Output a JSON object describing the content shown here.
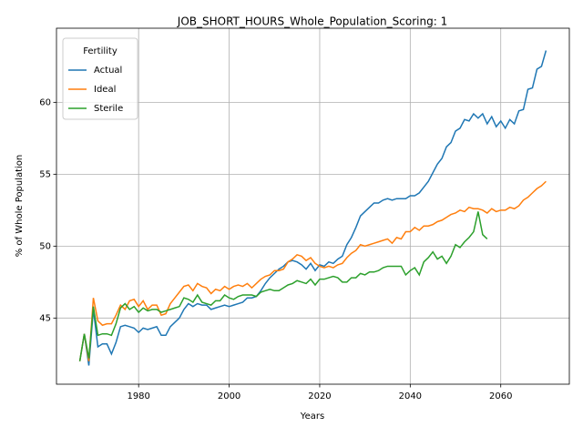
{
  "chart_data": {
    "type": "line",
    "title": "JOB_SHORT_HOURS_Whole_Population_Scoring: 1",
    "x_label": "Years",
    "y_label": "% of Whole Population",
    "legend_title": "Fertility",
    "legend_position": "upper left",
    "grid": true,
    "x": [
      1967,
      1968,
      1969,
      1970,
      1971,
      1972,
      1973,
      1974,
      1975,
      1976,
      1977,
      1978,
      1979,
      1980,
      1981,
      1982,
      1983,
      1984,
      1985,
      1986,
      1987,
      1988,
      1989,
      1990,
      1991,
      1992,
      1993,
      1994,
      1995,
      1996,
      1997,
      1998,
      1999,
      2000,
      2001,
      2002,
      2003,
      2004,
      2005,
      2006,
      2007,
      2008,
      2009,
      2010,
      2011,
      2012,
      2013,
      2014,
      2015,
      2016,
      2017,
      2018,
      2019,
      2020,
      2021,
      2022,
      2023,
      2024,
      2025,
      2026,
      2027,
      2028,
      2029,
      2030,
      2031,
      2032,
      2033,
      2034,
      2035,
      2036,
      2037,
      2038,
      2039,
      2040,
      2041,
      2042,
      2043,
      2044,
      2045,
      2046,
      2047,
      2048,
      2049,
      2050,
      2051,
      2052,
      2053,
      2054,
      2055,
      2056,
      2057,
      2058,
      2059,
      2060,
      2061,
      2062,
      2063,
      2064,
      2065,
      2066,
      2067,
      2068,
      2069,
      2070
    ],
    "series": [
      {
        "name": "Actual",
        "color": "#1f77b4",
        "values": [
          42.0,
          43.9,
          41.7,
          45.6,
          43.0,
          43.2,
          43.2,
          42.5,
          43.3,
          44.4,
          44.5,
          44.4,
          44.3,
          44.0,
          44.3,
          44.2,
          44.3,
          44.4,
          43.8,
          43.8,
          44.4,
          44.7,
          45.0,
          45.6,
          46.0,
          45.8,
          46.0,
          45.9,
          45.9,
          45.6,
          45.7,
          45.8,
          45.9,
          45.8,
          45.9,
          46.0,
          46.1,
          46.4,
          46.4,
          46.5,
          46.9,
          47.4,
          47.8,
          48.1,
          48.4,
          48.6,
          48.9,
          49.0,
          48.9,
          48.7,
          48.4,
          48.8,
          48.3,
          48.7,
          48.6,
          48.9,
          48.8,
          49.1,
          49.3,
          50.1,
          50.6,
          51.3,
          52.1,
          52.4,
          52.7,
          53.0,
          53.0,
          53.2,
          53.3,
          53.2,
          53.3,
          53.3,
          53.3,
          53.5,
          53.5,
          53.7,
          54.1,
          54.5,
          55.1,
          55.7,
          56.1,
          56.9,
          57.2,
          58.0,
          58.2,
          58.8,
          58.7,
          59.2,
          58.9,
          59.2,
          58.5,
          59.0,
          58.3,
          58.7,
          58.2,
          58.8,
          58.5,
          59.4,
          59.5,
          60.9,
          61.0,
          62.3,
          62.5,
          63.6
        ]
      },
      {
        "name": "Ideal",
        "color": "#ff7f0e",
        "values": [
          42.0,
          43.9,
          42.0,
          46.4,
          44.8,
          44.5,
          44.6,
          44.6,
          45.2,
          45.9,
          45.6,
          46.2,
          46.3,
          45.8,
          46.2,
          45.6,
          45.9,
          45.9,
          45.2,
          45.3,
          46.0,
          46.4,
          46.8,
          47.2,
          47.3,
          46.9,
          47.4,
          47.2,
          47.1,
          46.7,
          47.0,
          46.9,
          47.2,
          47.0,
          47.2,
          47.3,
          47.2,
          47.4,
          47.1,
          47.4,
          47.7,
          47.9,
          48.0,
          48.3,
          48.3,
          48.4,
          48.9,
          49.1,
          49.4,
          49.3,
          49.0,
          49.2,
          48.8,
          48.6,
          48.5,
          48.6,
          48.5,
          48.7,
          48.8,
          49.2,
          49.5,
          49.7,
          50.1,
          50.0,
          50.1,
          50.2,
          50.3,
          50.4,
          50.5,
          50.2,
          50.6,
          50.5,
          51.0,
          51.0,
          51.3,
          51.1,
          51.4,
          51.4,
          51.5,
          51.7,
          51.8,
          52.0,
          52.2,
          52.3,
          52.5,
          52.4,
          52.7,
          52.6,
          52.6,
          52.5,
          52.3,
          52.6,
          52.4,
          52.5,
          52.5,
          52.7,
          52.6,
          52.8,
          53.2,
          53.4,
          53.7,
          54.0,
          54.2,
          54.5
        ]
      },
      {
        "name": "Sterile",
        "color": "#2ca02c",
        "values": [
          42.0,
          43.9,
          42.2,
          45.8,
          43.8,
          43.9,
          43.9,
          43.8,
          44.6,
          45.7,
          46.0,
          45.6,
          45.8,
          45.4,
          45.7,
          45.5,
          45.6,
          45.6,
          45.4,
          45.5,
          45.6,
          45.7,
          45.8,
          46.4,
          46.3,
          46.1,
          46.6,
          46.1,
          46.0,
          45.9,
          46.2,
          46.2,
          46.6,
          46.4,
          46.3,
          46.5,
          46.6,
          46.6,
          46.6,
          46.5,
          46.8,
          46.9,
          47.0,
          46.9,
          46.9,
          47.1,
          47.3,
          47.4,
          47.6,
          47.5,
          47.4,
          47.7,
          47.3,
          47.7,
          47.7,
          47.8,
          47.9,
          47.8,
          47.5,
          47.5,
          47.8,
          47.8,
          48.1,
          48.0,
          48.2,
          48.2,
          48.3,
          48.5,
          48.6,
          48.6,
          48.6,
          48.6,
          48.0,
          48.3,
          48.5,
          48.0,
          48.9,
          49.2,
          49.6,
          49.1,
          49.3,
          48.8,
          49.3,
          50.1,
          49.9,
          50.3,
          50.6,
          51.0,
          52.4,
          50.8,
          50.5,
          null,
          null,
          null,
          null,
          null,
          null,
          null,
          null,
          null,
          null,
          null,
          null,
          null
        ]
      }
    ],
    "xlim": [
      1961.85,
      2075.15
    ],
    "xticks": [
      1980,
      2000,
      2020,
      2040,
      2060
    ],
    "ylim": [
      40.4,
      65.15
    ],
    "yticks": [
      45,
      50,
      55,
      60
    ]
  }
}
